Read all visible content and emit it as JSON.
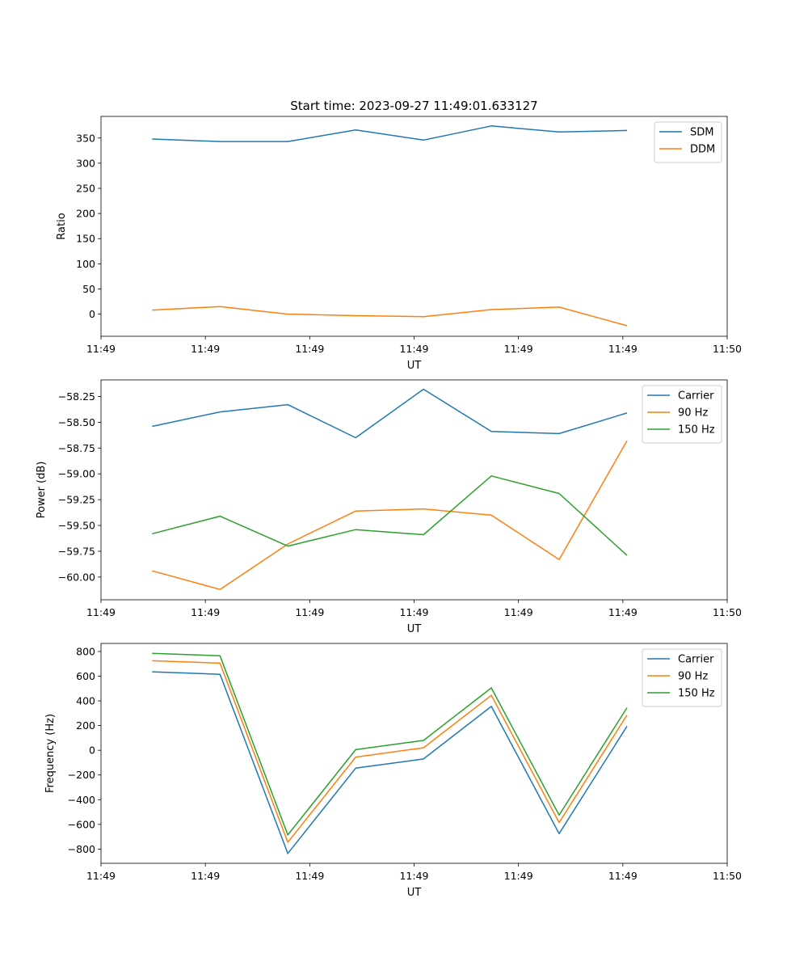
{
  "chart_data": [
    {
      "type": "line",
      "title": "Start time: 2023-09-27 11:49:01.633127",
      "xlabel": "UT",
      "ylabel": "Ratio",
      "x_tick_labels": [
        "11:49",
        "11:49",
        "11:49",
        "11:49",
        "11:49",
        "11:49",
        "11:50"
      ],
      "y_ticks": [
        0,
        50,
        100,
        150,
        200,
        250,
        300,
        350
      ],
      "y_tick_labels": [
        "0",
        "50",
        "100",
        "150",
        "200",
        "250",
        "300",
        "350"
      ],
      "xlim": [
        0,
        6
      ],
      "ylim": [
        -44,
        393
      ],
      "x": [
        0.49,
        1.14,
        1.79,
        2.44,
        3.09,
        3.74,
        4.39,
        5.04
      ],
      "legend_position": "upper right",
      "series": [
        {
          "name": "SDM",
          "color": "#1f77b4",
          "values": [
            348,
            343,
            343,
            366,
            346,
            374,
            362,
            365
          ]
        },
        {
          "name": "DDM",
          "color": "#ff7f0e",
          "values": [
            8,
            15,
            0,
            -3,
            -5,
            9,
            14,
            -23
          ]
        }
      ]
    },
    {
      "type": "line",
      "title": "",
      "xlabel": "UT",
      "ylabel": "Power (dB)",
      "x_tick_labels": [
        "11:49",
        "11:49",
        "11:49",
        "11:49",
        "11:49",
        "11:49",
        "11:50"
      ],
      "y_ticks": [
        -60.0,
        -59.75,
        -59.5,
        -59.25,
        -59.0,
        -58.75,
        -58.5,
        -58.25
      ],
      "y_tick_labels": [
        "−60.00",
        "−59.75",
        "−59.50",
        "−59.25",
        "−59.00",
        "−58.75",
        "−58.50",
        "−58.25"
      ],
      "xlim": [
        0,
        6
      ],
      "ylim": [
        -60.22,
        -58.09
      ],
      "x": [
        0.49,
        1.14,
        1.79,
        2.44,
        3.09,
        3.74,
        4.39,
        5.04
      ],
      "legend_position": "upper right",
      "series": [
        {
          "name": "Carrier",
          "color": "#1f77b4",
          "values": [
            -58.54,
            -58.4,
            -58.33,
            -58.65,
            -58.18,
            -58.59,
            -58.61,
            -58.41
          ]
        },
        {
          "name": "90 Hz",
          "color": "#ff7f0e",
          "values": [
            -59.94,
            -60.12,
            -59.68,
            -59.36,
            -59.34,
            -59.4,
            -59.83,
            -58.68
          ]
        },
        {
          "name": "150 Hz",
          "color": "#2ca02c",
          "values": [
            -59.58,
            -59.41,
            -59.7,
            -59.54,
            -59.59,
            -59.02,
            -59.19,
            -59.79
          ]
        }
      ]
    },
    {
      "type": "line",
      "title": "",
      "xlabel": "UT",
      "ylabel": "Frequency (Hz)",
      "x_tick_labels": [
        "11:49",
        "11:49",
        "11:49",
        "11:49",
        "11:49",
        "11:49",
        "11:50"
      ],
      "y_ticks": [
        -800,
        -600,
        -400,
        -200,
        0,
        200,
        400,
        600,
        800
      ],
      "y_tick_labels": [
        "−800",
        "−600",
        "−400",
        "−200",
        "0",
        "200",
        "400",
        "600",
        "800"
      ],
      "xlim": [
        0,
        6
      ],
      "ylim": [
        -915,
        865
      ],
      "x": [
        0.49,
        1.14,
        1.79,
        2.44,
        3.09,
        3.74,
        4.39,
        5.04
      ],
      "legend_position": "upper right",
      "series": [
        {
          "name": "Carrier",
          "color": "#1f77b4",
          "values": [
            635,
            615,
            -835,
            -145,
            -70,
            355,
            -675,
            195
          ]
        },
        {
          "name": "90 Hz",
          "color": "#ff7f0e",
          "values": [
            725,
            705,
            -745,
            -55,
            20,
            445,
            -585,
            285
          ]
        },
        {
          "name": "150 Hz",
          "color": "#2ca02c",
          "values": [
            785,
            765,
            -685,
            5,
            80,
            505,
            -525,
            345
          ]
        }
      ]
    }
  ]
}
